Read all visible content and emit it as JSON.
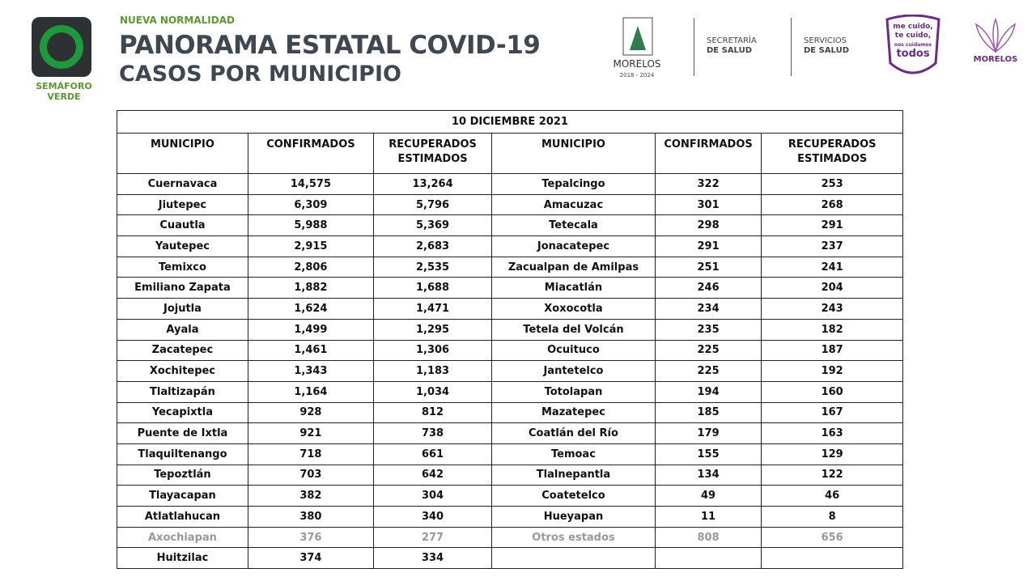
{
  "header": {
    "kicker": "NUEVA NORMALIDAD",
    "title": "PANORAMA ESTATAL COVID-19",
    "subtitle": "CASOS POR MUNICIPIO",
    "semaforo": "SEMÁFORO VERDE",
    "logos": {
      "morelos": "MORELOS",
      "morelos_years": "2018 - 2024",
      "secretaria_1": "SECRETARÍA",
      "secretaria_2": "DE SALUD",
      "servicios_1": "SERVICIOS",
      "servicios_2": "DE SALUD",
      "cuido_1": "me cuido,",
      "cuido_2": "te cuido,",
      "cuido_3": "nos cuidamos",
      "cuido_4": "todos",
      "morelos_2": "MORELOS"
    }
  },
  "table": {
    "date": "10 DICIEMBRE 2021",
    "columns": [
      "MUNICIPIO",
      "CONFIRMADOS",
      "RECUPERADOS ESTIMADOS",
      "MUNICIPIO",
      "CONFIRMADOS",
      "RECUPERADOS ESTIMADOS"
    ],
    "left": [
      [
        "Cuernavaca",
        "14,575",
        "13,264"
      ],
      [
        "Jiutepec",
        "6,309",
        "5,796"
      ],
      [
        "Cuautla",
        "5,988",
        "5,369"
      ],
      [
        "Yautepec",
        "2,915",
        "2,683"
      ],
      [
        "Temixco",
        "2,806",
        "2,535"
      ],
      [
        "Emiliano Zapata",
        "1,882",
        "1,688"
      ],
      [
        "Jojutla",
        "1,624",
        "1,471"
      ],
      [
        "Ayala",
        "1,499",
        "1,295"
      ],
      [
        "Zacatepec",
        "1,461",
        "1,306"
      ],
      [
        "Xochitepec",
        "1,343",
        "1,183"
      ],
      [
        "Tlaltizapán",
        "1,164",
        "1,034"
      ],
      [
        "Yecapixtla",
        "928",
        "812"
      ],
      [
        "Puente de Ixtla",
        "921",
        "738"
      ],
      [
        "Tlaquiltenango",
        "718",
        "661"
      ],
      [
        "Tepoztlán",
        "703",
        "642"
      ],
      [
        "Tlayacapan",
        "382",
        "304"
      ],
      [
        "Atlatlahucan",
        "380",
        "340"
      ],
      [
        "Axochiapan",
        "376",
        "277"
      ],
      [
        "Huitzilac",
        "374",
        "334"
      ]
    ],
    "right": [
      [
        "Tepalcingo",
        "322",
        "253"
      ],
      [
        "Amacuzac",
        "301",
        "268"
      ],
      [
        "Tetecala",
        "298",
        "291"
      ],
      [
        "Jonacatepec",
        "291",
        "237"
      ],
      [
        "Zacualpan de Amilpas",
        "251",
        "241"
      ],
      [
        "Miacatlán",
        "246",
        "204"
      ],
      [
        "Xoxocotla",
        "234",
        "243"
      ],
      [
        "Tetela del Volcán",
        "235",
        "182"
      ],
      [
        "Ocuituco",
        "225",
        "187"
      ],
      [
        "Jantetelco",
        "225",
        "192"
      ],
      [
        "Totolapan",
        "194",
        "160"
      ],
      [
        "Mazatepec",
        "185",
        "167"
      ],
      [
        "Coatlán del Río",
        "179",
        "163"
      ],
      [
        "Temoac",
        "155",
        "129"
      ],
      [
        "Tlalnepantla",
        "134",
        "122"
      ],
      [
        "Coatetelco",
        "49",
        "46"
      ],
      [
        "Hueyapan",
        "11",
        "8"
      ]
    ],
    "others": [
      "Otros estados",
      "808",
      "656"
    ]
  }
}
